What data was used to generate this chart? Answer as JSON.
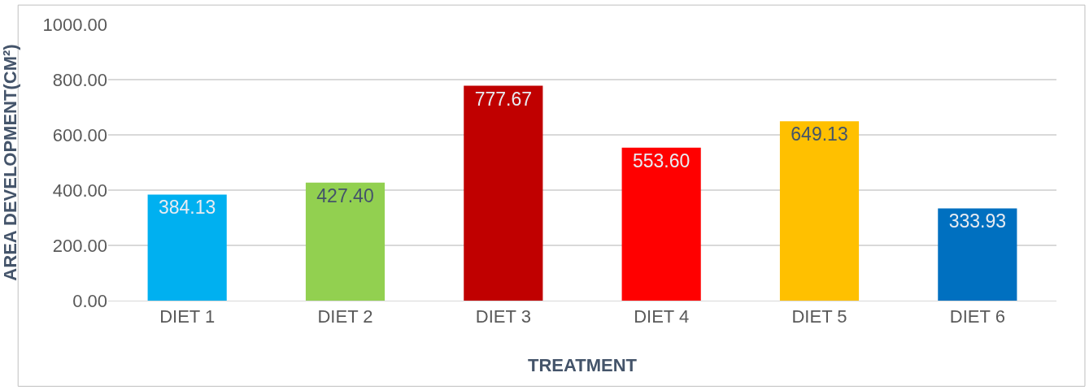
{
  "chart_data": {
    "type": "bar",
    "xlabel": "TREATMENT",
    "ylabel": "AREA DEVELOPMENT(CM²)",
    "categories": [
      "DIET 1",
      "DIET 2",
      "DIET 3",
      "DIET 4",
      "DIET 5",
      "DIET 6"
    ],
    "values": [
      384.13,
      427.4,
      777.67,
      553.6,
      649.13,
      333.93
    ],
    "value_labels": [
      "384.13",
      "427.40",
      "777.67",
      "553.60",
      "649.13",
      "333.93"
    ],
    "colors": [
      "#00b0f0",
      "#92d050",
      "#c00000",
      "#ff0000",
      "#ffc000",
      "#0070c0"
    ],
    "ylim": [
      0,
      1000
    ],
    "yticks": [
      {
        "value": 0,
        "label": "0.00"
      },
      {
        "value": 200,
        "label": "200.00"
      },
      {
        "value": 400,
        "label": "400.00"
      },
      {
        "value": 600,
        "label": "600.00"
      },
      {
        "value": 800,
        "label": "800.00"
      },
      {
        "value": 1000,
        "label": "1000.00"
      }
    ],
    "grid": "y",
    "legend": false
  }
}
